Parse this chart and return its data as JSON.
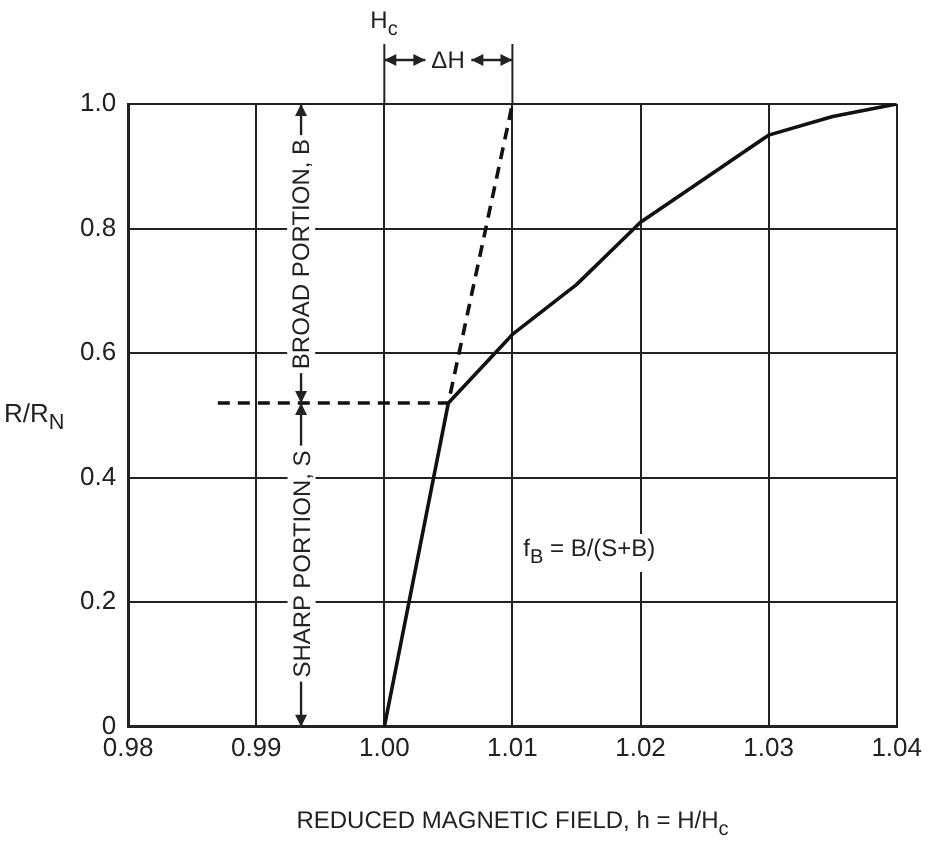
{
  "chart_data": {
    "type": "line",
    "xlabel": "REDUCED MAGNETIC FIELD, h = H/H$_{c}$",
    "ylabel": "R/R$_{N}$",
    "xlim": [
      0.98,
      1.04
    ],
    "xticks": [
      0.98,
      0.99,
      {
        "value": 1,
        "label": "1.00"
      },
      1.01,
      1.02,
      1.03,
      1.04
    ],
    "ylim": [
      0,
      1
    ],
    "yticks": [
      0,
      0.2,
      0.4,
      0.6,
      0.8,
      {
        "value": 1,
        "label": "1.0"
      }
    ],
    "grid": true,
    "marker": "none",
    "series": [
      {
        "color": "#111111",
        "line_style": "solid",
        "x": [
          1.0,
          1.005,
          1.01,
          1.015,
          1.02,
          1.025,
          1.03,
          1.035,
          1.04
        ],
        "values": [
          0,
          0.52,
          0.63,
          0.71,
          0.81,
          0.88,
          0.95,
          0.98,
          1.0
        ]
      },
      {
        "color": "#111111",
        "line_style": "dashed",
        "x": [
          0.987,
          1.005,
          1.01
        ],
        "values": [
          0.52,
          0.52,
          1.0
        ]
      }
    ],
    "annotations": [
      "H$_{c}$",
      "ΔH",
      "SHARP PORTION, S",
      "BROAD PORTION, B",
      "f$_{B}$ = B/(S+B)"
    ]
  }
}
